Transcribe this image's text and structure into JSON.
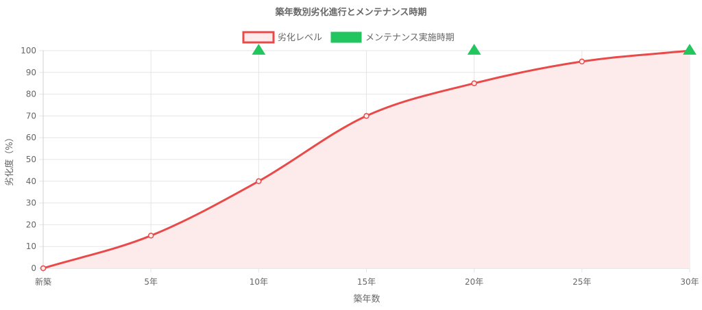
{
  "chart_data": {
    "type": "line",
    "title": "築年数別劣化進行とメンテナンス時期",
    "xlabel": "築年数",
    "ylabel": "劣化度（%）",
    "categories": [
      "新築",
      "5年",
      "10年",
      "15年",
      "20年",
      "25年",
      "30年"
    ],
    "ylim": [
      0,
      100
    ],
    "yticks": [
      0,
      10,
      20,
      30,
      40,
      50,
      60,
      70,
      80,
      90,
      100
    ],
    "grid": true,
    "legend_position": "top",
    "series": [
      {
        "name": "劣化レベル",
        "type": "area-line",
        "values": [
          0,
          15,
          40,
          70,
          85,
          95,
          100
        ],
        "line_color": "#e84a4a",
        "fill_color": "#fdeaea"
      },
      {
        "name": "メンテナンス実施時期",
        "type": "marker",
        "values": [
          null,
          null,
          100,
          null,
          100,
          null,
          100
        ],
        "color": "#22c55e"
      }
    ]
  }
}
